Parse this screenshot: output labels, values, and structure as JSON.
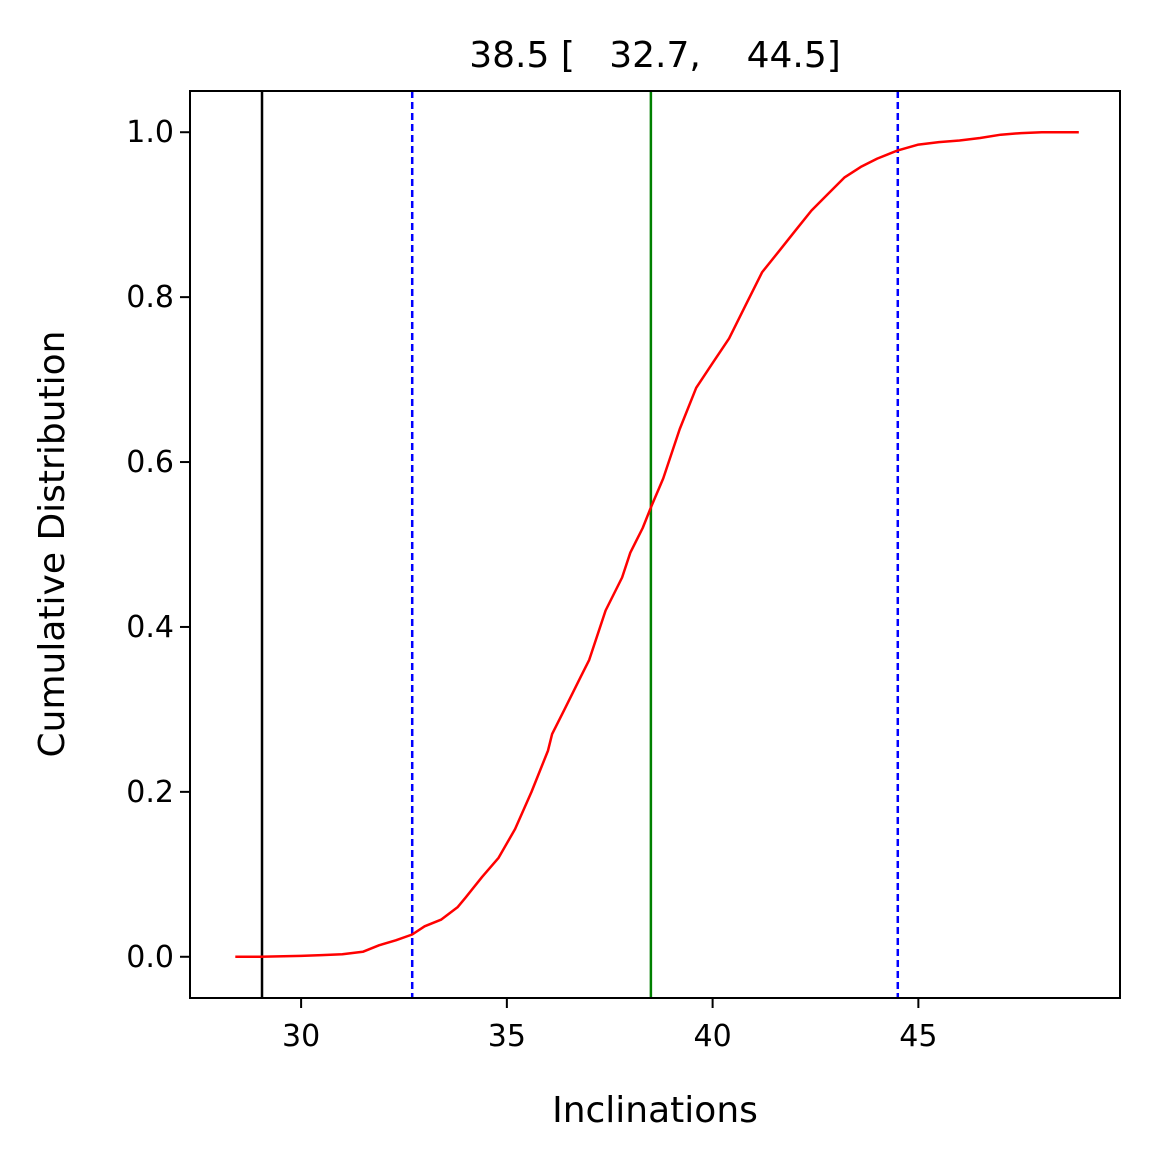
{
  "chart_data": {
    "type": "line",
    "title": "38.5 [   32.7,    44.5]",
    "xlabel": "Inclinations",
    "ylabel": "Cumulative Distribution",
    "xlim": [
      27.3,
      49.9
    ],
    "ylim": [
      -0.05,
      1.05
    ],
    "x_ticks": [
      30,
      35,
      40,
      45
    ],
    "y_ticks": [
      0.0,
      0.2,
      0.4,
      0.6,
      0.8,
      1.0
    ],
    "x_tick_labels": [
      "30",
      "35",
      "40",
      "45"
    ],
    "y_tick_labels": [
      "0.0",
      "0.2",
      "0.4",
      "0.6",
      "0.8",
      "1.0"
    ],
    "grid": false,
    "series": [
      {
        "color": "#ff0000",
        "x": [
          28.4,
          29.0,
          30.0,
          30.5,
          31.0,
          31.5,
          31.9,
          32.3,
          32.7,
          33.0,
          33.4,
          33.8,
          34.0,
          34.4,
          34.8,
          35.2,
          35.6,
          36.0,
          36.1,
          36.4,
          36.8,
          37.0,
          37.4,
          37.8,
          38.0,
          38.3,
          38.5,
          38.8,
          39.2,
          39.6,
          40.0,
          40.4,
          40.8,
          41.2,
          41.6,
          42.0,
          42.4,
          42.8,
          43.2,
          43.6,
          44.0,
          44.5,
          45.0,
          45.5,
          46.0,
          46.5,
          47.0,
          47.5,
          48.0,
          48.5,
          48.9
        ],
        "y": [
          0.0,
          0.0,
          0.001,
          0.002,
          0.003,
          0.006,
          0.014,
          0.02,
          0.027,
          0.037,
          0.045,
          0.06,
          0.072,
          0.097,
          0.12,
          0.155,
          0.2,
          0.25,
          0.27,
          0.3,
          0.34,
          0.36,
          0.42,
          0.46,
          0.49,
          0.52,
          0.545,
          0.58,
          0.64,
          0.69,
          0.72,
          0.75,
          0.79,
          0.83,
          0.855,
          0.88,
          0.905,
          0.925,
          0.945,
          0.958,
          0.968,
          0.978,
          0.985,
          0.988,
          0.99,
          0.993,
          0.997,
          0.999,
          1.0,
          1.0,
          1.0
        ]
      }
    ],
    "vlines": [
      {
        "x": 29.05,
        "color": "#000000",
        "style": "solid"
      },
      {
        "x": 32.7,
        "color": "#0000ff",
        "style": "dashed"
      },
      {
        "x": 38.5,
        "color": "#008000",
        "style": "solid"
      },
      {
        "x": 44.5,
        "color": "#0000ff",
        "style": "dashed"
      }
    ]
  }
}
